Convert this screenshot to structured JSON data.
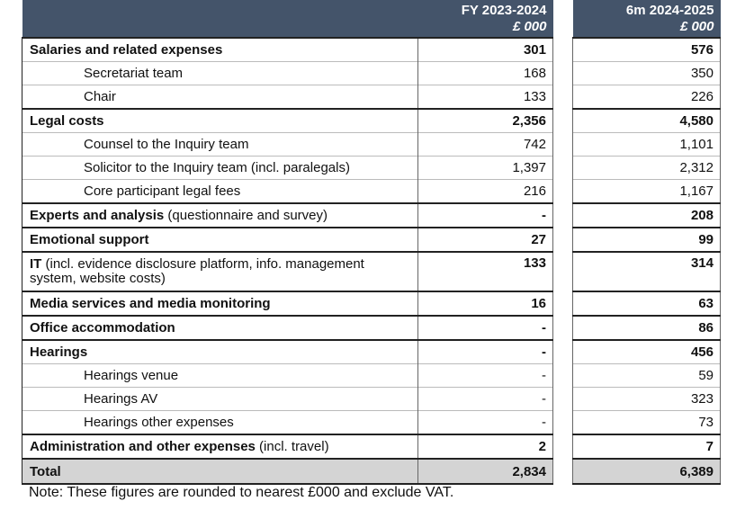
{
  "header": {
    "col1_title": "FY 2023-2024",
    "col1_unit": "£ 000",
    "col2_title": "6m 2024-2025",
    "col2_unit": "£ 000"
  },
  "rows": [
    {
      "type": "main",
      "label": "Salaries and related expenses",
      "label_note": "",
      "fy": "301",
      "sm": "576"
    },
    {
      "type": "sub",
      "label": "Secretariat team",
      "label_note": "",
      "fy": "168",
      "sm": "350"
    },
    {
      "type": "sub",
      "label": "Chair",
      "label_note": "",
      "fy": "133",
      "sm": "226"
    },
    {
      "type": "main",
      "label": "Legal costs",
      "label_note": "",
      "fy": "2,356",
      "sm": "4,580"
    },
    {
      "type": "sub",
      "label": "Counsel to the Inquiry team",
      "label_note": "",
      "fy": "742",
      "sm": "1,101"
    },
    {
      "type": "sub",
      "label": "Solicitor to the Inquiry team (incl. paralegals)",
      "label_note": "",
      "fy": "1,397",
      "sm": "2,312"
    },
    {
      "type": "sub",
      "label": "Core participant legal fees",
      "label_note": "",
      "fy": "216",
      "sm": "1,167"
    },
    {
      "type": "main",
      "label": "Experts and analysis",
      "label_note": " (questionnaire and survey)",
      "fy": "-",
      "sm": "208"
    },
    {
      "type": "main",
      "label": "Emotional support",
      "label_note": "",
      "fy": "27",
      "sm": "99"
    },
    {
      "type": "main",
      "label": "IT",
      "label_note": " (incl. evidence disclosure platform, info. management system, website costs)",
      "fy": "133",
      "sm": "314"
    },
    {
      "type": "main",
      "label": "Media services and media monitoring",
      "label_note": "",
      "fy": "16",
      "sm": "63"
    },
    {
      "type": "main",
      "label": "Office accommodation",
      "label_note": "",
      "fy": "-",
      "sm": "86"
    },
    {
      "type": "main",
      "label": "Hearings",
      "label_note": "",
      "fy": "-",
      "sm": "456"
    },
    {
      "type": "sub",
      "label": "Hearings venue",
      "label_note": "",
      "fy": "-",
      "sm": "59"
    },
    {
      "type": "sub",
      "label": "Hearings AV",
      "label_note": "",
      "fy": "-",
      "sm": "323"
    },
    {
      "type": "sub",
      "label": "Hearings other expenses",
      "label_note": "",
      "fy": "-",
      "sm": "73"
    },
    {
      "type": "main",
      "label": "Administration and other expenses",
      "label_note": " (incl. travel)",
      "fy": "2",
      "sm": "7"
    },
    {
      "type": "total",
      "label": "Total",
      "label_note": "",
      "fy": "2,834",
      "sm": "6,389"
    }
  ],
  "note": "Note: These figures are rounded to nearest £000 and exclude VAT."
}
